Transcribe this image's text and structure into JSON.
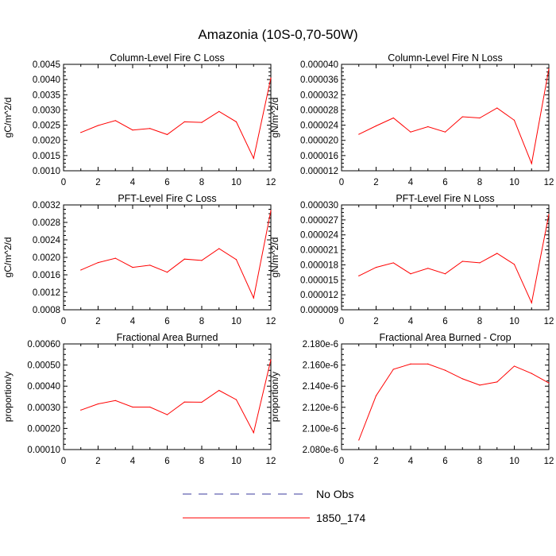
{
  "page": {
    "title": "Amazonia (10S-0,70-50W)"
  },
  "colors": {
    "model": "#ff0000",
    "obs": "#3b3b9e",
    "axis": "#000000"
  },
  "legend": [
    {
      "label": "No Obs",
      "style": "dashed",
      "color": "#3b3b9e"
    },
    {
      "label": "1850_174",
      "style": "solid",
      "color": "#ff0000"
    }
  ],
  "chart_data": [
    {
      "type": "line",
      "title": "Column-Level Fire C Loss",
      "ylabel": "gC/m^2/d",
      "xlim": [
        0,
        12
      ],
      "ylim": [
        0.001,
        0.0045
      ],
      "xticks": [
        "0",
        "2",
        "4",
        "6",
        "8",
        "10",
        "12"
      ],
      "yticks": [
        "0.0010",
        "0.0015",
        "0.0020",
        "0.0025",
        "0.0030",
        "0.0035",
        "0.0040",
        "0.0045"
      ],
      "x": [
        1,
        2,
        3,
        4,
        5,
        6,
        7,
        8,
        9,
        10,
        11,
        12
      ],
      "series": [
        {
          "name": "1850_174",
          "values": [
            0.00226,
            0.00249,
            0.00265,
            0.00234,
            0.00239,
            0.00219,
            0.00261,
            0.00259,
            0.00295,
            0.00261,
            0.00141,
            0.00405
          ]
        }
      ]
    },
    {
      "type": "line",
      "title": "Column-Level Fire N Loss",
      "ylabel": "gN/m^2/d",
      "xlim": [
        0,
        12
      ],
      "ylim": [
        1.2e-05,
        4e-05
      ],
      "xticks": [
        "0",
        "2",
        "4",
        "6",
        "8",
        "10",
        "12"
      ],
      "yticks": [
        "0.000012",
        "0.000016",
        "0.000020",
        "0.000024",
        "0.000028",
        "0.000032",
        "0.000036",
        "0.000040"
      ],
      "x": [
        1,
        2,
        3,
        4,
        5,
        6,
        7,
        8,
        9,
        10,
        11,
        12
      ],
      "series": [
        {
          "name": "1850_174",
          "values": [
            2.16e-05,
            2.38e-05,
            2.59e-05,
            2.22e-05,
            2.36e-05,
            2.22e-05,
            2.62e-05,
            2.59e-05,
            2.85e-05,
            2.53e-05,
            1.39e-05,
            3.88e-05
          ]
        }
      ]
    },
    {
      "type": "line",
      "title": "PFT-Level Fire C Loss",
      "ylabel": "gC/m^2/d",
      "xlim": [
        0,
        12
      ],
      "ylim": [
        0.0008,
        0.0032
      ],
      "xticks": [
        "0",
        "2",
        "4",
        "6",
        "8",
        "10",
        "12"
      ],
      "yticks": [
        "0.0008",
        "0.0012",
        "0.0016",
        "0.0020",
        "0.0024",
        "0.0028",
        "0.0032"
      ],
      "x": [
        1,
        2,
        3,
        4,
        5,
        6,
        7,
        8,
        9,
        10,
        11,
        12
      ],
      "series": [
        {
          "name": "1850_174",
          "values": [
            0.00171,
            0.00188,
            0.00198,
            0.00177,
            0.00182,
            0.00166,
            0.00196,
            0.00193,
            0.0022,
            0.00195,
            0.00107,
            0.00307
          ]
        }
      ]
    },
    {
      "type": "line",
      "title": "PFT-Level Fire N Loss",
      "ylabel": "gN/m^2/d",
      "xlim": [
        0,
        12
      ],
      "ylim": [
        9e-06,
        3e-05
      ],
      "xticks": [
        "0",
        "2",
        "4",
        "6",
        "8",
        "10",
        "12"
      ],
      "yticks": [
        "0.000009",
        "0.000012",
        "0.000015",
        "0.000018",
        "0.000021",
        "0.000024",
        "0.000027",
        "0.000030"
      ],
      "x": [
        1,
        2,
        3,
        4,
        5,
        6,
        7,
        8,
        9,
        10,
        11,
        12
      ],
      "series": [
        {
          "name": "1850_174",
          "values": [
            1.58e-05,
            1.75e-05,
            1.84e-05,
            1.62e-05,
            1.73e-05,
            1.62e-05,
            1.87e-05,
            1.84e-05,
            2.03e-05,
            1.81e-05,
            1.04e-05,
            2.81e-05
          ]
        }
      ]
    },
    {
      "type": "line",
      "title": "Fractional Area Burned",
      "ylabel": "proportion/y",
      "xlim": [
        0,
        12
      ],
      "ylim": [
        0.0001,
        0.0006
      ],
      "xticks": [
        "0",
        "2",
        "4",
        "6",
        "8",
        "10",
        "12"
      ],
      "yticks": [
        "0.00010",
        "0.00020",
        "0.00030",
        "0.00040",
        "0.00050",
        "0.00060"
      ],
      "x": [
        1,
        2,
        3,
        4,
        5,
        6,
        7,
        8,
        9,
        10,
        11,
        12
      ],
      "series": [
        {
          "name": "1850_174",
          "values": [
            0.000287,
            0.000316,
            0.000332,
            0.000301,
            0.000301,
            0.000265,
            0.000325,
            0.000324,
            0.00038,
            0.000336,
            0.00018,
            0.000525
          ]
        }
      ]
    },
    {
      "type": "line",
      "title": "Fractional Area Burned - Crop",
      "ylabel": "proportion/y",
      "xlim": [
        0,
        12
      ],
      "ylim": [
        2.08e-06,
        2.18e-06
      ],
      "xticks": [
        "0",
        "2",
        "4",
        "6",
        "8",
        "10",
        "12"
      ],
      "yticks": [
        "2.080e-6",
        "2.100e-6",
        "2.120e-6",
        "2.140e-6",
        "2.160e-6",
        "2.180e-6"
      ],
      "x": [
        1,
        2,
        3,
        4,
        5,
        6,
        7,
        8,
        9,
        10,
        11,
        12
      ],
      "series": [
        {
          "name": "1850_174",
          "values": [
            2.089e-06,
            2.131e-06,
            2.156e-06,
            2.161e-06,
            2.161e-06,
            2.155e-06,
            2.147e-06,
            2.141e-06,
            2.144e-06,
            2.159e-06,
            2.152e-06,
            2.143e-06
          ]
        }
      ]
    }
  ]
}
